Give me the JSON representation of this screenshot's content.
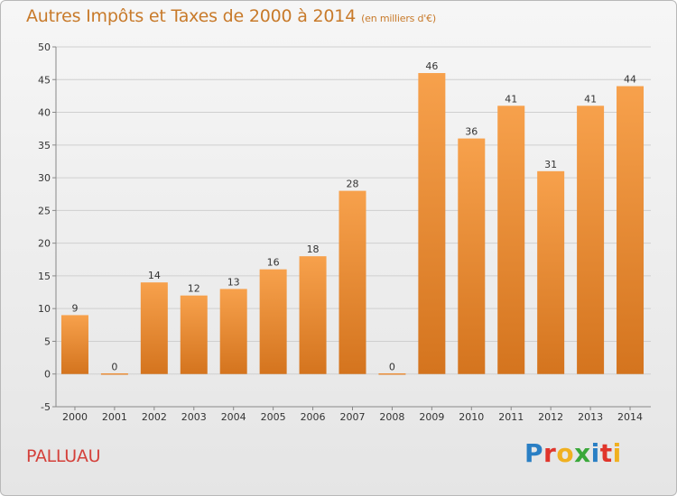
{
  "title": "Autres Impôts et Taxes de 2000 à 2014",
  "subtitle": "(en milliers d'€)",
  "commune": "PALLUAU",
  "logo": {
    "text": "Proxiti",
    "letters": [
      {
        "ch": "P",
        "color": "#2a7fc4"
      },
      {
        "ch": "r",
        "color": "#e0352b"
      },
      {
        "ch": "o",
        "color": "#f0b020"
      },
      {
        "ch": "x",
        "color": "#3aa83a"
      },
      {
        "ch": "i",
        "color": "#2a7fc4"
      },
      {
        "ch": "t",
        "color": "#e0352b"
      },
      {
        "ch": "i",
        "color": "#f0b020"
      }
    ]
  },
  "colors": {
    "bar_top": "#f7a14c",
    "bar_bottom": "#d4741e",
    "grid": "#cfcfcf",
    "axis": "#888888",
    "text": "#333333"
  },
  "chart_data": {
    "type": "bar",
    "categories": [
      "2000",
      "2001",
      "2002",
      "2003",
      "2004",
      "2005",
      "2006",
      "2007",
      "2008",
      "2009",
      "2010",
      "2011",
      "2012",
      "2013",
      "2014"
    ],
    "values": [
      9,
      0,
      14,
      12,
      13,
      16,
      18,
      28,
      0,
      46,
      36,
      41,
      31,
      41,
      44
    ],
    "ylim": [
      -5,
      50
    ],
    "yticks": [
      -5,
      0,
      5,
      10,
      15,
      20,
      25,
      30,
      35,
      40,
      45,
      50
    ],
    "grid": true,
    "data_labels": true
  }
}
